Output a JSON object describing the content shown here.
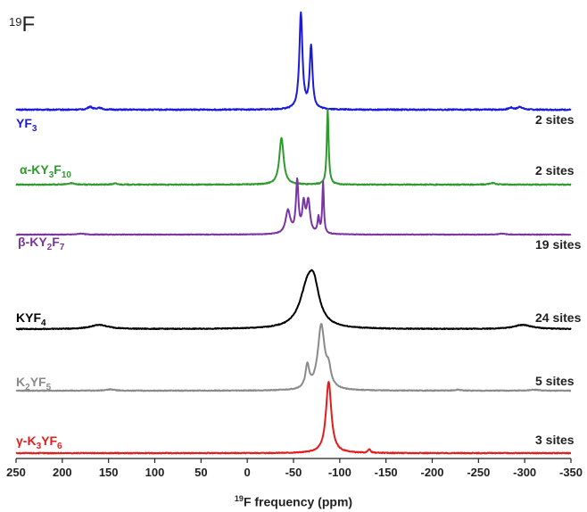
{
  "nucleus": {
    "pre": "19",
    "main": "F"
  },
  "chart_data": {
    "type": "line",
    "title": "",
    "xlabel_sup": "19",
    "xlabel_main": "F frequency (ppm)",
    "xlim": [
      250,
      -350
    ],
    "x_ticks": [
      "250",
      "200",
      "150",
      "100",
      "50",
      "0",
      "-50",
      "-100",
      "-150",
      "-200",
      "-250",
      "-300",
      "-350"
    ],
    "series": [
      {
        "parts": [
          "YF",
          "3",
          ""
        ],
        "sites": "2 sites",
        "color": "#1a1adc",
        "peaks": [
          [
            -58,
            1.0,
            2.0
          ],
          [
            -69,
            0.65,
            1.8
          ],
          [
            170,
            0.03,
            3
          ],
          [
            160,
            0.02,
            3
          ],
          [
            -285,
            0.02,
            3
          ],
          [
            -295,
            0.03,
            3
          ]
        ]
      },
      {
        "parts": [
          "α-KY",
          "3",
          "F",
          "10"
        ],
        "sites": "2 sites",
        "color": "#2e9a2e",
        "peaks": [
          [
            -37,
            0.62,
            2.8
          ],
          [
            -87,
            1.0,
            1.2
          ],
          [
            190,
            0.02,
            4
          ],
          [
            143,
            0.015,
            3
          ],
          [
            -265,
            0.02,
            4
          ]
        ]
      },
      {
        "parts": [
          "β-KY",
          "2",
          "F",
          "7"
        ],
        "sites": "19 sites",
        "color": "#7a35a2",
        "peaks": [
          [
            -44,
            0.45,
            3.0
          ],
          [
            -54,
            1.0,
            1.6
          ],
          [
            -61,
            0.55,
            1.8
          ],
          [
            -66,
            0.62,
            2.2
          ],
          [
            -77,
            0.3,
            1.2
          ],
          [
            -82,
            1.0,
            1.0
          ],
          [
            180,
            0.02,
            4
          ],
          [
            -275,
            0.02,
            4
          ]
        ]
      },
      {
        "parts": [
          "KYF",
          "4",
          ""
        ],
        "sites": "24 sites",
        "color": "#000000",
        "peaks": [
          [
            -65,
            0.55,
            10
          ],
          [
            -72,
            0.45,
            7
          ],
          [
            160,
            0.06,
            12
          ],
          [
            -298,
            0.06,
            12
          ]
        ]
      },
      {
        "parts": [
          "K",
          "2",
          "YF",
          "5"
        ],
        "sites": "5 sites",
        "color": "#8a8a8a",
        "peaks": [
          [
            -80,
            1.0,
            4.5
          ],
          [
            -65,
            0.35,
            2.5
          ],
          [
            -88,
            0.25,
            3
          ],
          [
            148,
            0.02,
            5
          ],
          [
            -228,
            0.015,
            3
          ],
          [
            -310,
            0.015,
            5
          ]
        ]
      },
      {
        "parts": [
          "γ-K",
          "3",
          "YF",
          "6"
        ],
        "sites": "3 sites",
        "color": "#e51b1b",
        "peaks": [
          [
            -88,
            1.0,
            3.5
          ],
          [
            -132,
            0.05,
            1.5
          ]
        ]
      }
    ]
  }
}
